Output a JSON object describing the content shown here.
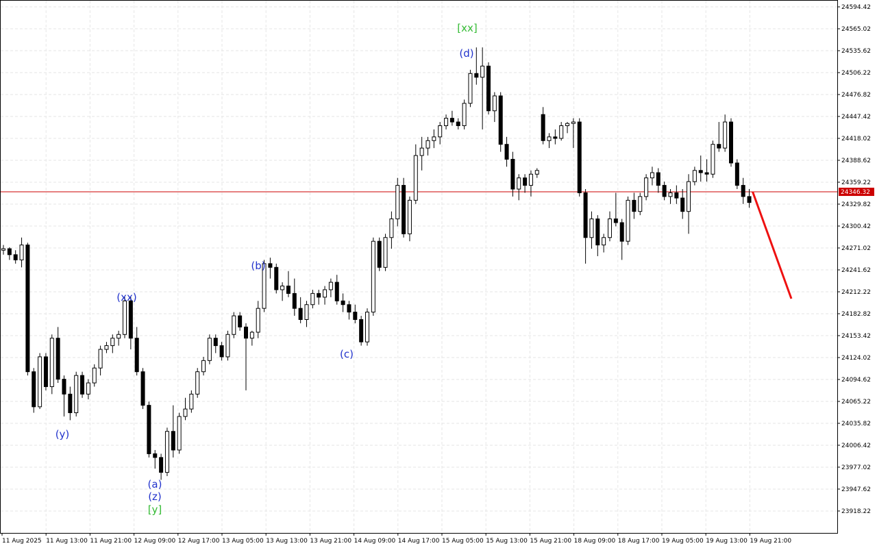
{
  "chart_data": {
    "type": "candlestick",
    "ylim": [
      23888.8,
      24603.6
    ],
    "yticks": [
      24594.42,
      24565.02,
      24535.62,
      24506.22,
      24476.82,
      24447.42,
      24418.02,
      24388.62,
      24359.22,
      24329.82,
      24300.42,
      24271.02,
      24241.62,
      24212.22,
      24182.82,
      24153.42,
      24124.02,
      24094.62,
      24065.22,
      24035.82,
      24006.42,
      23977.02,
      23947.62,
      23918.22
    ],
    "time_labels": [
      "11 Aug 2025",
      "11 Aug 13:00",
      "11 Aug 21:00",
      "12 Aug 09:00",
      "12 Aug 17:00",
      "13 Aug 05:00",
      "13 Aug 13:00",
      "13 Aug 21:00",
      "14 Aug 09:00",
      "14 Aug 17:00",
      "15 Aug 05:00",
      "15 Aug 13:00",
      "15 Aug 21:00",
      "18 Aug 09:00",
      "18 Aug 17:00",
      "19 Aug 05:00",
      "19 Aug 13:00",
      "19 Aug 21:00"
    ],
    "grid": true,
    "up_color": "#ffffff",
    "down_color": "#000000",
    "open": [
      24268,
      24270,
      24262,
      24255,
      24275,
      24105,
      24058,
      24125,
      24085,
      24150,
      24095,
      24075,
      24050,
      24100,
      24075,
      24090,
      24110,
      24135,
      24140,
      24150,
      24155,
      24200,
      24150,
      24105,
      24060,
      23995,
      23990,
      23970,
      24025,
      24000,
      24045,
      24055,
      24075,
      24105,
      24120,
      24150,
      24140,
      24125,
      24155,
      24180,
      24165,
      24150,
      24158,
      24190,
      24250,
      24245,
      24215,
      24220,
      24210,
      24190,
      24175,
      24195,
      24210,
      24205,
      24215,
      24225,
      24200,
      24195,
      24185,
      24175,
      24145,
      24185,
      24280,
      24245,
      24285,
      24310,
      24355,
      24290,
      24335,
      24395,
      24405,
      24415,
      24420,
      24435,
      24445,
      24440,
      24435,
      24465,
      24505,
      24500,
      24515,
      24455,
      24475,
      24410,
      24390,
      24350,
      24365,
      24355,
      24370,
      24450,
      24415,
      24420,
      24418,
      24435,
      24438,
      24440,
      24345,
      24285,
      24310,
      24275,
      24285,
      24310,
      24305,
      24280,
      24335,
      24320,
      24340,
      24365,
      24372,
      24355,
      24340,
      24345,
      24338,
      24320,
      24360,
      24375,
      24372,
      24370,
      24410,
      24405,
      24440,
      24385,
      24355,
      24340
    ],
    "high": [
      24275,
      24272,
      24268,
      24285,
      24278,
      24110,
      24130,
      24130,
      24155,
      24165,
      24100,
      24085,
      24105,
      24105,
      24095,
      24115,
      24140,
      24145,
      24155,
      24160,
      24205,
      24205,
      24165,
      24110,
      24065,
      24000,
      23995,
      24030,
      24060,
      24050,
      24070,
      24080,
      24110,
      24125,
      24155,
      24155,
      24145,
      24160,
      24185,
      24185,
      24170,
      24160,
      24200,
      24255,
      24258,
      24250,
      24225,
      24240,
      24230,
      24205,
      24200,
      24215,
      24215,
      24220,
      24230,
      24235,
      24210,
      24200,
      24195,
      24180,
      24190,
      24285,
      24285,
      24290,
      24320,
      24365,
      24365,
      24340,
      24410,
      24420,
      24420,
      24430,
      24440,
      24450,
      24455,
      24445,
      24470,
      24510,
      24540,
      24540,
      24520,
      24480,
      24480,
      24420,
      24400,
      24370,
      24370,
      24375,
      24378,
      24460,
      24425,
      24430,
      24440,
      24440,
      24445,
      24445,
      24350,
      24320,
      24315,
      24290,
      24320,
      24345,
      24310,
      24340,
      24345,
      24345,
      24370,
      24380,
      24378,
      24360,
      24350,
      24355,
      24350,
      24370,
      24380,
      24395,
      24390,
      24415,
      24440,
      24450,
      24445,
      24390,
      24365,
      24350
    ],
    "low": [
      24262,
      24255,
      24250,
      24245,
      24100,
      24050,
      24055,
      24080,
      24075,
      24090,
      24045,
      24040,
      24045,
      24070,
      24068,
      24085,
      24100,
      24130,
      24130,
      24140,
      24150,
      24135,
      24100,
      24055,
      23990,
      23975,
      23960,
      23965,
      23990,
      23995,
      24040,
      24050,
      24070,
      24100,
      24115,
      24130,
      24120,
      24120,
      24150,
      24160,
      24080,
      24140,
      24150,
      24185,
      24230,
      24210,
      24200,
      24205,
      24180,
      24170,
      24165,
      24190,
      24195,
      24195,
      24205,
      24195,
      24185,
      24175,
      24170,
      24140,
      24140,
      24180,
      24240,
      24240,
      24270,
      24300,
      24285,
      24280,
      24330,
      24375,
      24395,
      24405,
      24410,
      24430,
      24435,
      24430,
      24430,
      24460,
      24490,
      24430,
      24450,
      24440,
      24400,
      24380,
      24340,
      24335,
      24345,
      24340,
      24365,
      24410,
      24405,
      24410,
      24415,
      24425,
      24405,
      24340,
      24250,
      24270,
      24260,
      24265,
      24280,
      24300,
      24255,
      24275,
      24310,
      24315,
      24335,
      24355,
      24345,
      24335,
      24330,
      24330,
      24310,
      24290,
      24355,
      24360,
      24360,
      24365,
      24400,
      24400,
      24380,
      24350,
      24330,
      24325
    ],
    "close": [
      24270,
      24262,
      24255,
      24275,
      24105,
      24058,
      24125,
      24085,
      24150,
      24095,
      24075,
      24050,
      24100,
      24075,
      24090,
      24110,
      24135,
      24140,
      24150,
      24155,
      24200,
      24150,
      24105,
      24060,
      23995,
      23990,
      23970,
      24025,
      24000,
      24045,
      24055,
      24075,
      24105,
      24120,
      24150,
      24140,
      24125,
      24155,
      24180,
      24165,
      24150,
      24158,
      24190,
      24250,
      24245,
      24215,
      24220,
      24210,
      24190,
      24175,
      24195,
      24210,
      24205,
      24215,
      24225,
      24200,
      24195,
      24185,
      24175,
      24145,
      24185,
      24280,
      24245,
      24285,
      24310,
      24355,
      24290,
      24335,
      24395,
      24405,
      24415,
      24420,
      24435,
      24445,
      24440,
      24435,
      24465,
      24505,
      24500,
      24515,
      24455,
      24475,
      24410,
      24390,
      24350,
      24365,
      24355,
      24370,
      24375,
      24415,
      24420,
      24418,
      24435,
      24438,
      24440,
      24345,
      24285,
      24310,
      24275,
      24285,
      24310,
      24305,
      24280,
      24335,
      24320,
      24340,
      24365,
      24372,
      24355,
      24340,
      24345,
      24338,
      24320,
      24360,
      24375,
      24372,
      24370,
      24410,
      24405,
      24440,
      24385,
      24355,
      24340,
      24332
    ],
    "current_price": {
      "value": 24346.32,
      "label": "24346.32",
      "color": "#cc0000"
    },
    "forecast": {
      "from": 24346.32,
      "to": 24203,
      "color": "#ee1111"
    },
    "wave_labels": [
      {
        "text": "[xx]",
        "color": "#33bb33"
      },
      {
        "text": "(d)",
        "color": "#2233cc"
      },
      {
        "text": "(b)",
        "color": "#2233cc"
      },
      {
        "text": "(xx)",
        "color": "#2233cc"
      },
      {
        "text": "(c)",
        "color": "#2233cc"
      },
      {
        "text": "(y)",
        "color": "#2233cc"
      },
      {
        "text": "(a)",
        "color": "#2233cc"
      },
      {
        "text": "(z)",
        "color": "#2233cc"
      },
      {
        "text": "[y]",
        "color": "#33bb33"
      }
    ]
  }
}
